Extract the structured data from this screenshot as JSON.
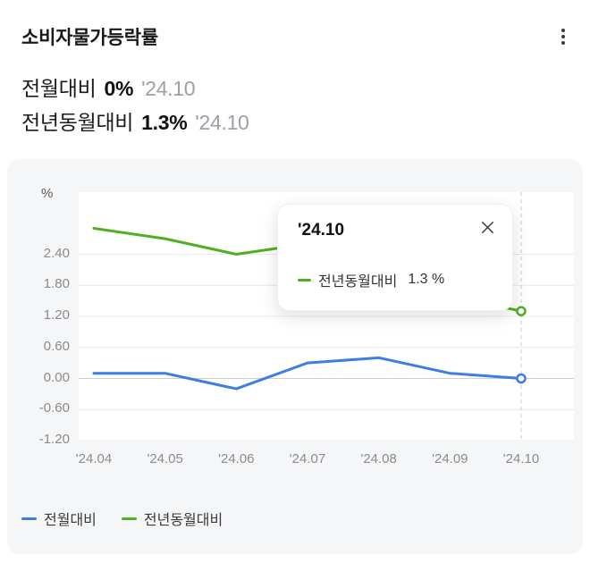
{
  "header": {
    "title": "소비자물가등락률",
    "rows": [
      {
        "label": "전월대비",
        "value": "0%",
        "date": "'24.10"
      },
      {
        "label": "전년동월대비",
        "value": "1.3%",
        "date": "'24.10"
      }
    ]
  },
  "menu_icon": "kebab-menu",
  "chart_data": {
    "type": "line",
    "unit_label": "%",
    "x": [
      "'24.04",
      "'24.05",
      "'24.06",
      "'24.07",
      "'24.08",
      "'24.09",
      "'24.10"
    ],
    "series": [
      {
        "name": "전월대비",
        "color": "#3D7DE4",
        "values": [
          0.1,
          0.1,
          -0.2,
          0.3,
          0.4,
          0.1,
          0.0
        ]
      },
      {
        "name": "전년동월대비",
        "color": "#4DB11E",
        "values": [
          2.9,
          2.7,
          2.4,
          2.6,
          2.0,
          1.6,
          1.3
        ]
      }
    ],
    "y_ticks": [
      2.4,
      1.8,
      1.2,
      0.6,
      0.0,
      -0.6,
      -1.2
    ],
    "y_tick_labels": [
      "2.40",
      "1.80",
      "1.20",
      "0.60",
      "0.00",
      "-0.60",
      "-1.20"
    ],
    "ylim": [
      -1.2,
      3.6
    ],
    "grid": true,
    "highlight_x": "'24.10",
    "legend_position": "bottom"
  },
  "tooltip": {
    "title": "'24.10",
    "series_name": "전년동월대비",
    "value": "1.3 %",
    "close_icon": "close"
  },
  "legend": [
    {
      "label": "전월대비",
      "color": "#3D7DE4"
    },
    {
      "label": "전년동월대비",
      "color": "#4DB11E"
    }
  ]
}
